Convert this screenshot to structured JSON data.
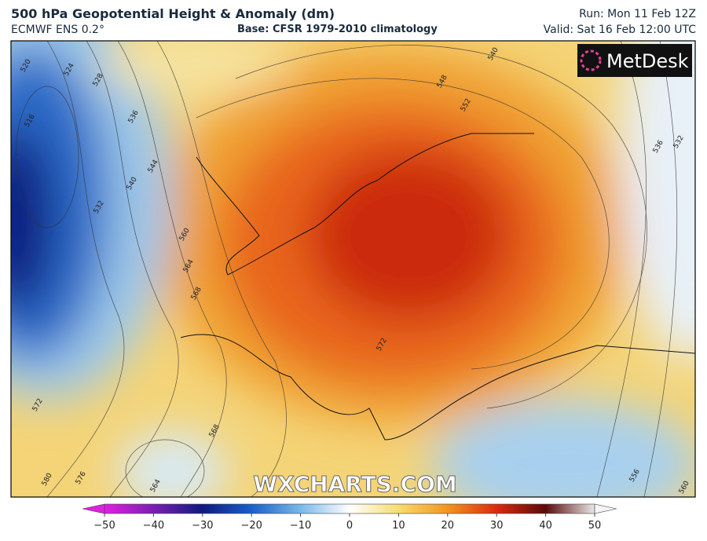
{
  "header": {
    "title": "500 hPa Geopotential Height & Anomaly (dm)",
    "model": "ECMWF ENS 0.2°",
    "base": "Base: CFSR 1979-2010 climatology",
    "run": "Run: Mon 11 Feb 12Z",
    "valid": "Valid: Sat 16 Feb 12:00 UTC"
  },
  "logo": "MetDesk",
  "watermark": "WXCHARTS.COM",
  "contour_labels": [
    520,
    524,
    528,
    516,
    536,
    544,
    540,
    532,
    560,
    564,
    568,
    572,
    572,
    576,
    580,
    564,
    568,
    540,
    548,
    552,
    536,
    532,
    556,
    560
  ],
  "colorbar": {
    "range": [
      -50,
      50
    ],
    "ticks": [
      {
        "value": -50,
        "label": "−50"
      },
      {
        "value": -40,
        "label": "−40"
      },
      {
        "value": -30,
        "label": "−30"
      },
      {
        "value": -20,
        "label": "−20"
      },
      {
        "value": -10,
        "label": "−10"
      },
      0,
      10,
      20,
      30,
      40,
      50
    ]
  }
}
